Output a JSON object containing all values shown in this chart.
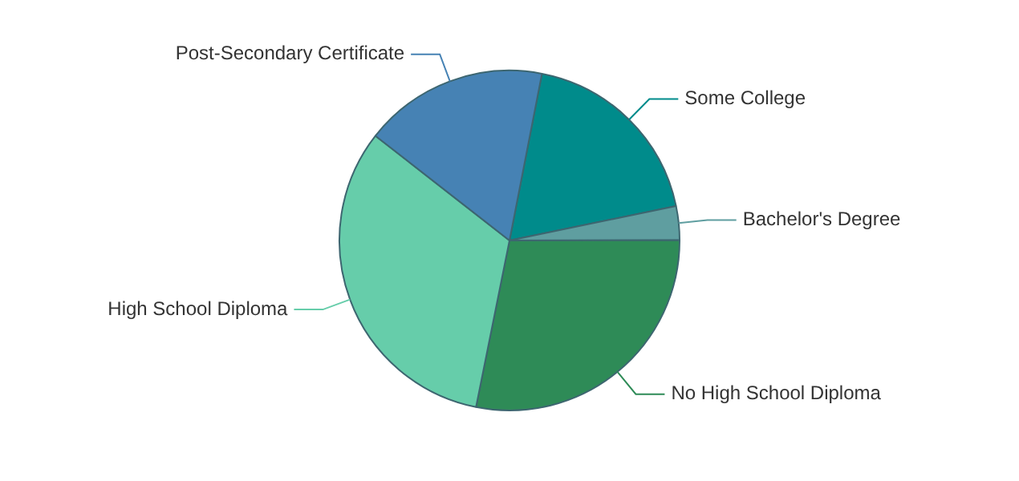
{
  "chart_data": {
    "type": "pie",
    "categories": [
      "Some College",
      "Bachelor's Degree",
      "No High School Diploma",
      "High School Diploma",
      "Post-Secondary Certificate"
    ],
    "values": [
      18.7,
      3.2,
      28.2,
      32.4,
      17.5
    ],
    "colors": [
      "#008b8b",
      "#5f9ea0",
      "#2e8b57",
      "#66cdaa",
      "#4682b4"
    ]
  }
}
